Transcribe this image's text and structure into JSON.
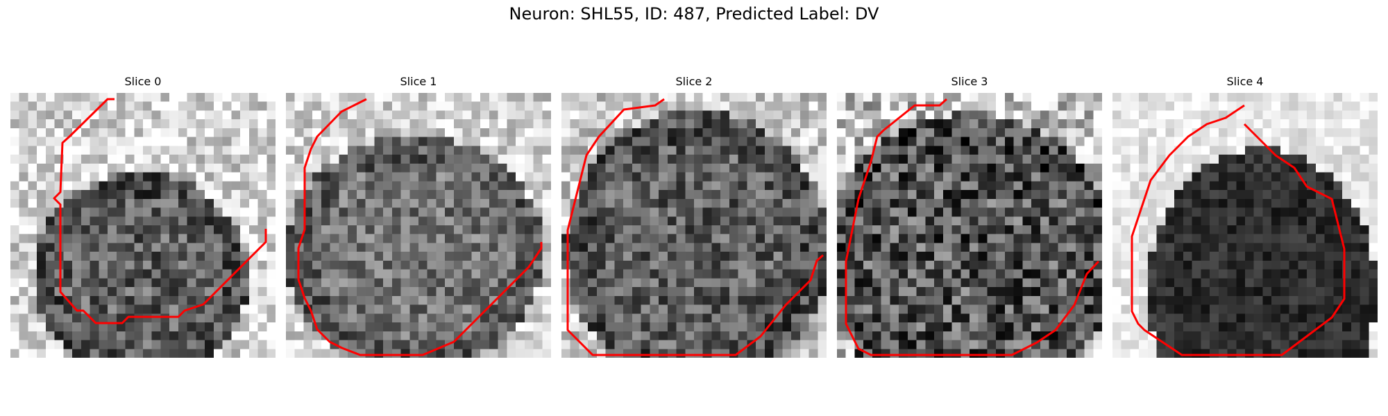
{
  "figure": {
    "title": "Neuron: SHL55, ID: 487, Predicted Label: DV"
  },
  "panels": [
    {
      "title": "Slice 0"
    },
    {
      "title": "Slice 1"
    },
    {
      "title": "Slice 2"
    },
    {
      "title": "Slice 3"
    },
    {
      "title": "Slice 4"
    }
  ],
  "contour_color": "#ff0000"
}
